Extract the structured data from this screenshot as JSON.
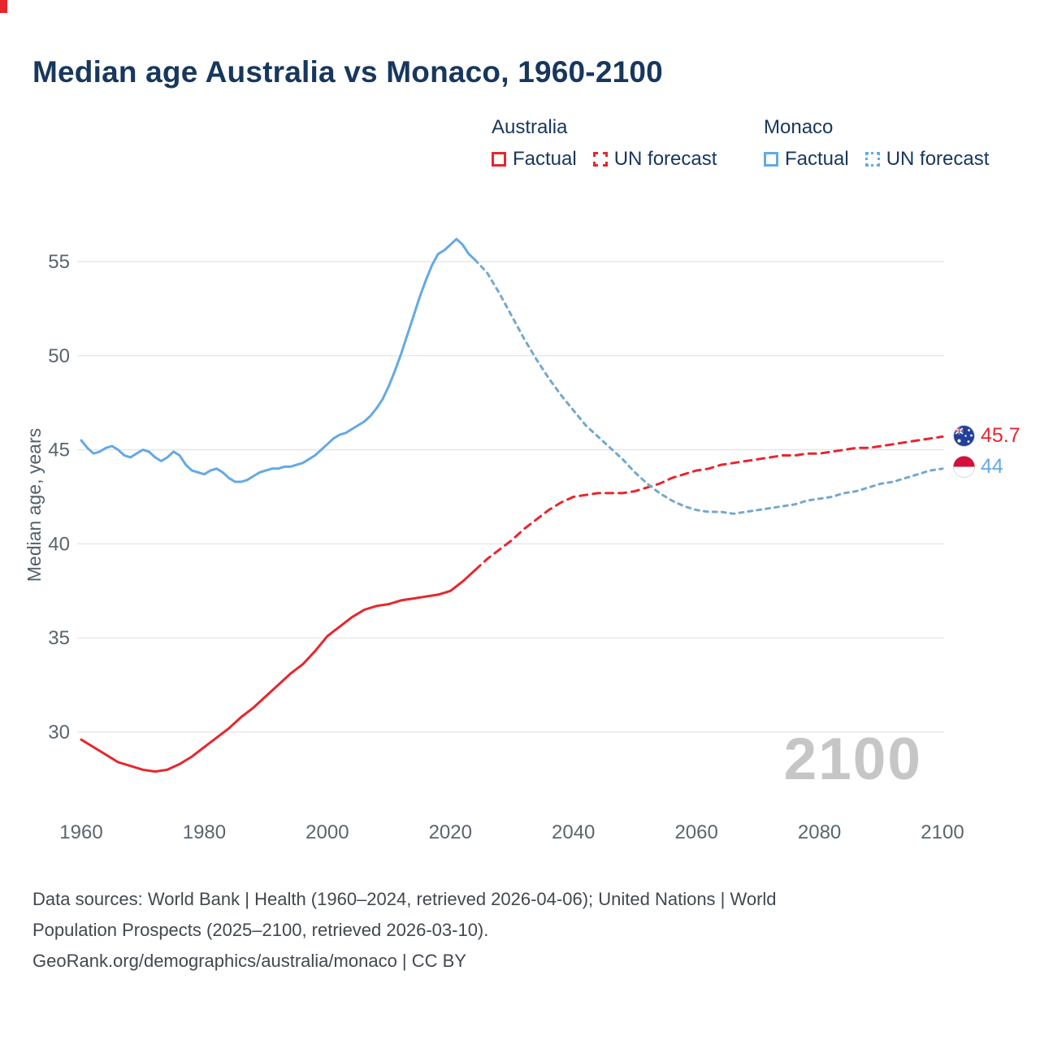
{
  "page": {
    "title": "Median age Australia vs Monaco, 1960-2100",
    "watermark": "2100",
    "footer": {
      "line1": "Data sources: World Bank | Health (1960–2024, retrieved 2026-04-06); United Nations | World",
      "line2": "Population Prospects (2025–2100, retrieved 2026-03-10).",
      "line3": "GeoRank.org/demographics/australia/monaco | CC BY"
    }
  },
  "legend": {
    "groups": [
      {
        "country": "Australia",
        "color": "#e8262d",
        "items": [
          {
            "label": "Factual",
            "style": "solid"
          },
          {
            "label": "UN forecast",
            "style": "dashed"
          }
        ]
      },
      {
        "country": "Monaco",
        "color": "#64a9e4",
        "items": [
          {
            "label": "Factual",
            "style": "solid"
          },
          {
            "label": "UN forecast",
            "style": "dotted"
          }
        ]
      }
    ]
  },
  "end_labels": [
    {
      "series": "Australia",
      "value": "45.7",
      "color": "#e8262d",
      "flag": "australia-flag"
    },
    {
      "series": "Monaco",
      "value": "44",
      "color": "#64a9e4",
      "flag": "monaco-flag"
    }
  ],
  "chart_data": {
    "type": "line",
    "title": "Median age Australia vs Monaco, 1960-2100",
    "xlabel": "",
    "ylabel": "Median age, years",
    "xlim": [
      1952,
      2112
    ],
    "ylim": [
      26.5,
      57.5
    ],
    "xticks": [
      1960,
      1980,
      2000,
      2020,
      2040,
      2060,
      2080,
      2100
    ],
    "yticks": [
      30,
      35,
      40,
      45,
      50,
      55
    ],
    "grid": "horizontal",
    "legend_position": "top",
    "series": [
      {
        "name": "Australia — Factual",
        "color": "#e8262d",
        "dash": "solid",
        "x": [
          1960,
          1962,
          1964,
          1966,
          1968,
          1970,
          1972,
          1974,
          1976,
          1978,
          1980,
          1982,
          1984,
          1986,
          1988,
          1990,
          1992,
          1994,
          1996,
          1998,
          2000,
          2002,
          2004,
          2006,
          2008,
          2010,
          2012,
          2014,
          2016,
          2018,
          2020,
          2022,
          2024
        ],
        "y": [
          29.6,
          29.2,
          28.8,
          28.4,
          28.2,
          28.0,
          27.9,
          28.0,
          28.3,
          28.7,
          29.2,
          29.7,
          30.2,
          30.8,
          31.3,
          31.9,
          32.5,
          33.1,
          33.6,
          34.3,
          35.1,
          35.6,
          36.1,
          36.5,
          36.7,
          36.8,
          37.0,
          37.1,
          37.2,
          37.3,
          37.5,
          38.0,
          38.6
        ]
      },
      {
        "name": "Australia — UN forecast",
        "color": "#e8262d",
        "dash": "dashed",
        "x": [
          2024,
          2026,
          2028,
          2030,
          2032,
          2034,
          2036,
          2038,
          2040,
          2042,
          2044,
          2046,
          2048,
          2050,
          2052,
          2054,
          2056,
          2058,
          2060,
          2062,
          2064,
          2066,
          2068,
          2070,
          2072,
          2074,
          2076,
          2078,
          2080,
          2082,
          2084,
          2086,
          2088,
          2090,
          2092,
          2094,
          2096,
          2098,
          2100
        ],
        "y": [
          38.6,
          39.2,
          39.7,
          40.2,
          40.8,
          41.3,
          41.8,
          42.2,
          42.5,
          42.6,
          42.7,
          42.7,
          42.7,
          42.8,
          43.0,
          43.2,
          43.5,
          43.7,
          43.9,
          44.0,
          44.2,
          44.3,
          44.4,
          44.5,
          44.6,
          44.7,
          44.7,
          44.8,
          44.8,
          44.9,
          45.0,
          45.1,
          45.1,
          45.2,
          45.3,
          45.4,
          45.5,
          45.6,
          45.7
        ]
      },
      {
        "name": "Monaco — Factual",
        "color": "#64a9e4",
        "dash": "solid",
        "x": [
          1960,
          1961,
          1962,
          1963,
          1964,
          1965,
          1966,
          1967,
          1968,
          1969,
          1970,
          1971,
          1972,
          1973,
          1974,
          1975,
          1976,
          1977,
          1978,
          1979,
          1980,
          1981,
          1982,
          1983,
          1984,
          1985,
          1986,
          1987,
          1988,
          1989,
          1990,
          1991,
          1992,
          1993,
          1994,
          1995,
          1996,
          1997,
          1998,
          1999,
          2000,
          2001,
          2002,
          2003,
          2004,
          2005,
          2006,
          2007,
          2008,
          2009,
          2010,
          2011,
          2012,
          2013,
          2014,
          2015,
          2016,
          2017,
          2018,
          2019,
          2020,
          2021,
          2022,
          2023,
          2024
        ],
        "y": [
          45.5,
          45.1,
          44.8,
          44.9,
          45.1,
          45.2,
          45.0,
          44.7,
          44.6,
          44.8,
          45.0,
          44.9,
          44.6,
          44.4,
          44.6,
          44.9,
          44.7,
          44.2,
          43.9,
          43.8,
          43.7,
          43.9,
          44.0,
          43.8,
          43.5,
          43.3,
          43.3,
          43.4,
          43.6,
          43.8,
          43.9,
          44.0,
          44.0,
          44.1,
          44.1,
          44.2,
          44.3,
          44.5,
          44.7,
          45.0,
          45.3,
          45.6,
          45.8,
          45.9,
          46.1,
          46.3,
          46.5,
          46.8,
          47.2,
          47.7,
          48.4,
          49.2,
          50.1,
          51.1,
          52.1,
          53.1,
          54.0,
          54.8,
          55.4,
          55.6,
          55.9,
          56.2,
          55.9,
          55.4,
          55.1
        ]
      },
      {
        "name": "Monaco — UN forecast",
        "color": "#74a9cf",
        "dash": "dotted",
        "x": [
          2024,
          2026,
          2028,
          2030,
          2032,
          2034,
          2036,
          2038,
          2040,
          2042,
          2044,
          2046,
          2048,
          2050,
          2052,
          2054,
          2056,
          2058,
          2060,
          2062,
          2064,
          2066,
          2068,
          2070,
          2072,
          2074,
          2076,
          2078,
          2080,
          2082,
          2084,
          2086,
          2088,
          2090,
          2092,
          2094,
          2096,
          2098,
          2100
        ],
        "y": [
          55.1,
          54.4,
          53.3,
          52.1,
          50.9,
          49.8,
          48.8,
          47.9,
          47.1,
          46.3,
          45.7,
          45.1,
          44.5,
          43.8,
          43.2,
          42.7,
          42.3,
          42.0,
          41.8,
          41.7,
          41.7,
          41.6,
          41.7,
          41.8,
          41.9,
          42.0,
          42.1,
          42.3,
          42.4,
          42.5,
          42.7,
          42.8,
          43.0,
          43.2,
          43.3,
          43.5,
          43.7,
          43.9,
          44.0
        ]
      }
    ],
    "end_annotations": [
      {
        "series": "Australia",
        "year": 2100,
        "value": 45.7
      },
      {
        "series": "Monaco",
        "year": 2100,
        "value": 44
      }
    ]
  }
}
